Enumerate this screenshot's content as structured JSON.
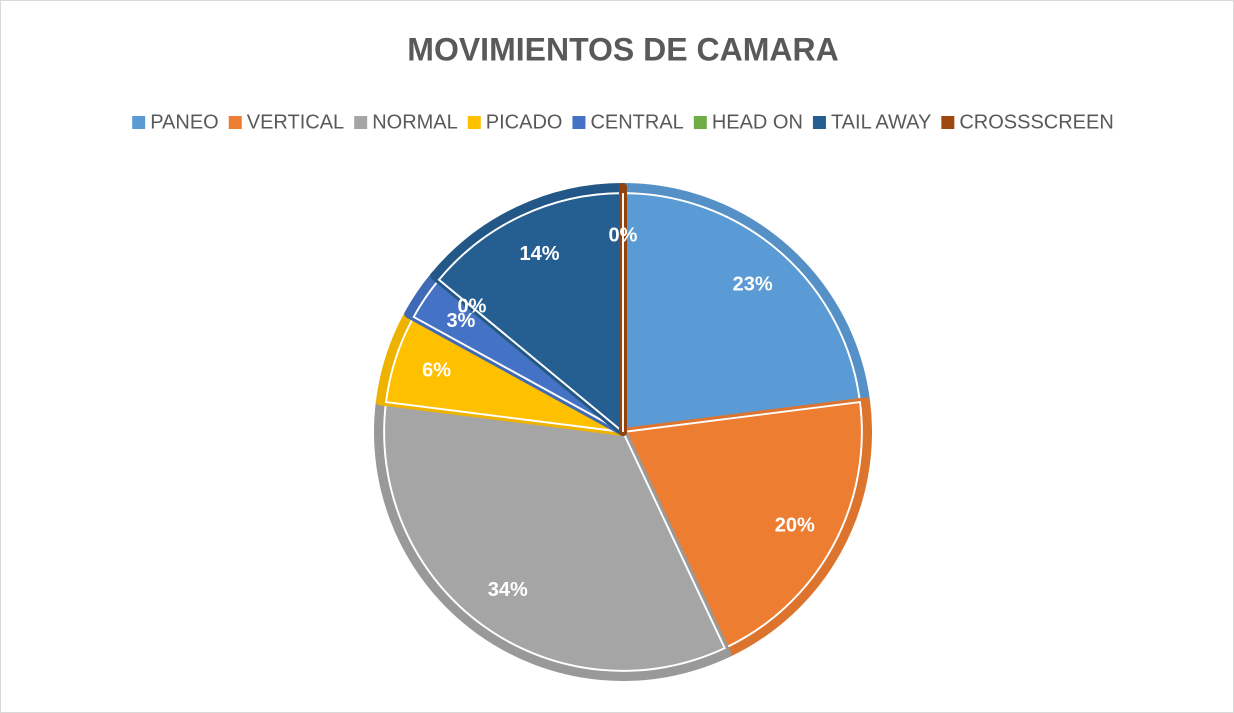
{
  "chart_data": {
    "type": "pie",
    "title": "MOVIMIENTOS DE CAMARA",
    "categories": [
      "PANEO",
      "VERTICAL",
      "NORMAL",
      "PICADO",
      "CENTRAL",
      "HEAD ON",
      "TAIL AWAY",
      "CROSSSCREEN"
    ],
    "values": [
      23,
      20,
      34,
      6,
      3,
      0,
      14,
      0
    ],
    "value_labels": [
      "23%",
      "20%",
      "34%",
      "6%",
      "3%",
      "0%",
      "14%",
      "0%"
    ],
    "colors": [
      "#5b9bd5",
      "#ed7d31",
      "#a5a5a5",
      "#ffc000",
      "#4472c4",
      "#70ad47",
      "#255e91",
      "#9e480e"
    ],
    "legend": "top"
  }
}
